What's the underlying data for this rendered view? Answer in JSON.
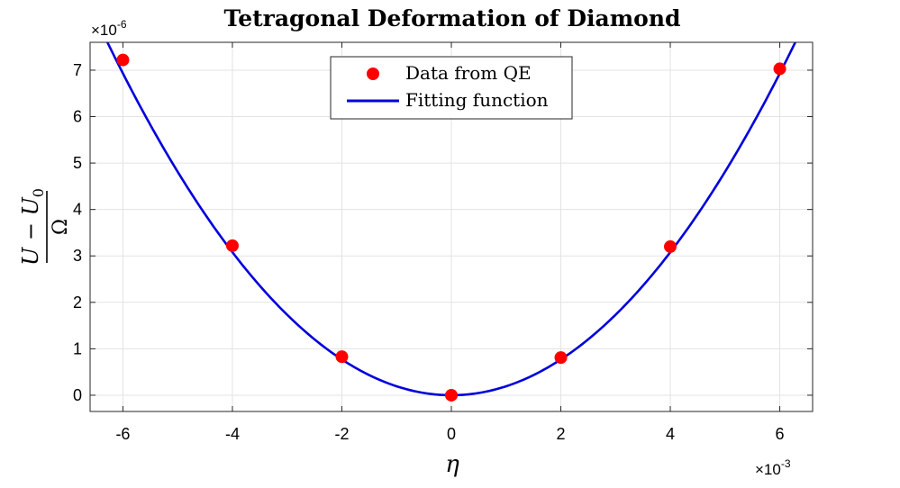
{
  "chart_data": {
    "type": "scatter",
    "title": "Tetragonal Deformation of Diamond",
    "xlabel": "η",
    "ylabel": {
      "numerator": "U − U",
      "numerator_subscript": "0",
      "denominator": "Ω"
    },
    "x_exponent": {
      "base": "×10",
      "power": "-3"
    },
    "y_exponent": {
      "base": "×10",
      "power": "-6"
    },
    "xlim": [
      -6.6,
      6.6
    ],
    "ylim": [
      -0.35,
      7.6
    ],
    "xticks": [
      -6,
      -4,
      -2,
      0,
      2,
      4,
      6
    ],
    "yticks": [
      0,
      1,
      2,
      3,
      4,
      5,
      6,
      7
    ],
    "grid": true,
    "legend_position": "top-center",
    "series": [
      {
        "name": "Data from QE",
        "kind": "scatter",
        "color": "#ff0000",
        "x": [
          -6,
          -4,
          -2,
          0,
          2,
          4,
          6
        ],
        "y": [
          7.22,
          3.22,
          0.83,
          0.0,
          0.81,
          3.2,
          7.03
        ]
      },
      {
        "name": "Fitting function",
        "kind": "line",
        "color": "#0000dd",
        "coefficient": 0.1925
      }
    ]
  }
}
